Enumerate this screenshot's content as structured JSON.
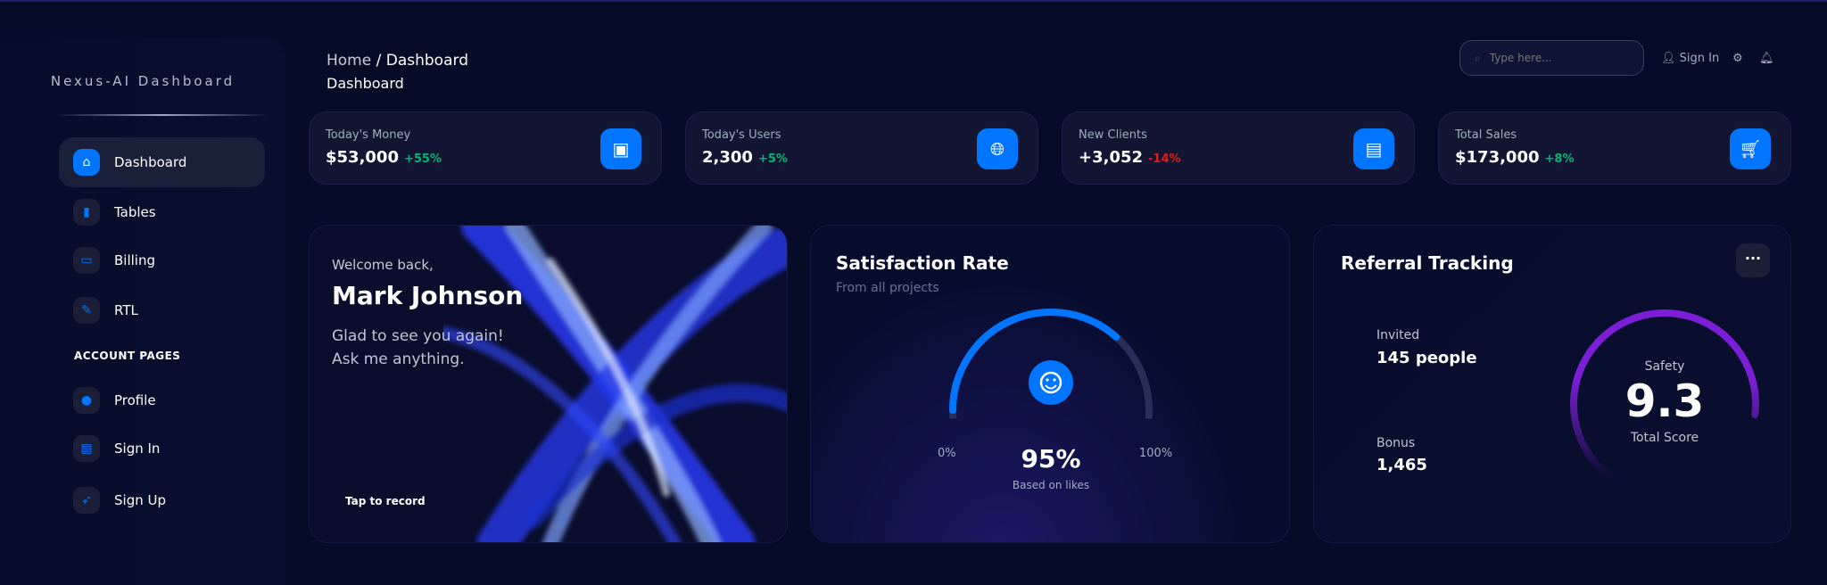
{
  "sidebar": {
    "brand": "Nexus-AI Dashboard",
    "section_label": "ACCOUNT PAGES",
    "items": [
      {
        "label": "Dashboard",
        "icon": "home-icon"
      },
      {
        "label": "Tables",
        "icon": "bar-chart-icon"
      },
      {
        "label": "Billing",
        "icon": "credit-card-icon"
      },
      {
        "label": "RTL",
        "icon": "wrench-icon"
      }
    ],
    "account_items": [
      {
        "label": "Profile",
        "icon": "user-icon"
      },
      {
        "label": "Sign In",
        "icon": "document-icon"
      },
      {
        "label": "Sign Up",
        "icon": "rocket-icon"
      }
    ]
  },
  "header": {
    "breadcrumb_home": "Home",
    "breadcrumb_sep": "/",
    "breadcrumb_current": "Dashboard",
    "page_title": "Dashboard",
    "search_placeholder": "Type here...",
    "sign_in": "Sign In"
  },
  "stats": [
    {
      "label": "Today's Money",
      "value": "$53,000",
      "change": "+55%",
      "positive": true,
      "icon": "wallet-icon"
    },
    {
      "label": "Today's Users",
      "value": "2,300",
      "change": "+5%",
      "positive": true,
      "icon": "globe-icon"
    },
    {
      "label": "New Clients",
      "value": "+3,052",
      "change": "-14%",
      "positive": false,
      "icon": "document-icon"
    },
    {
      "label": "Total Sales",
      "value": "$173,000",
      "change": "+8%",
      "positive": true,
      "icon": "cart-icon"
    }
  ],
  "welcome": {
    "greeting": "Welcome back,",
    "name": "Mark Johnson",
    "line1": "Glad to see you again!",
    "line2": "Ask me anything.",
    "cta": "Tap to record"
  },
  "satisfaction": {
    "title": "Satisfaction Rate",
    "subtitle": "From all projects",
    "min": "0%",
    "max": "100%",
    "value": "95%",
    "value_pct": 95,
    "caption": "Based on likes"
  },
  "referral": {
    "title": "Referral Tracking",
    "invited_label": "Invited",
    "invited_value": "145 people",
    "bonus_label": "Bonus",
    "bonus_value": "1,465",
    "gauge_label": "Safety",
    "score": "9.3",
    "score_label": "Total Score",
    "score_max": 10
  },
  "colors": {
    "accent": "#0075ff",
    "positive": "#01b574",
    "negative": "#e31a1a",
    "referral": "#7b1fd6"
  }
}
